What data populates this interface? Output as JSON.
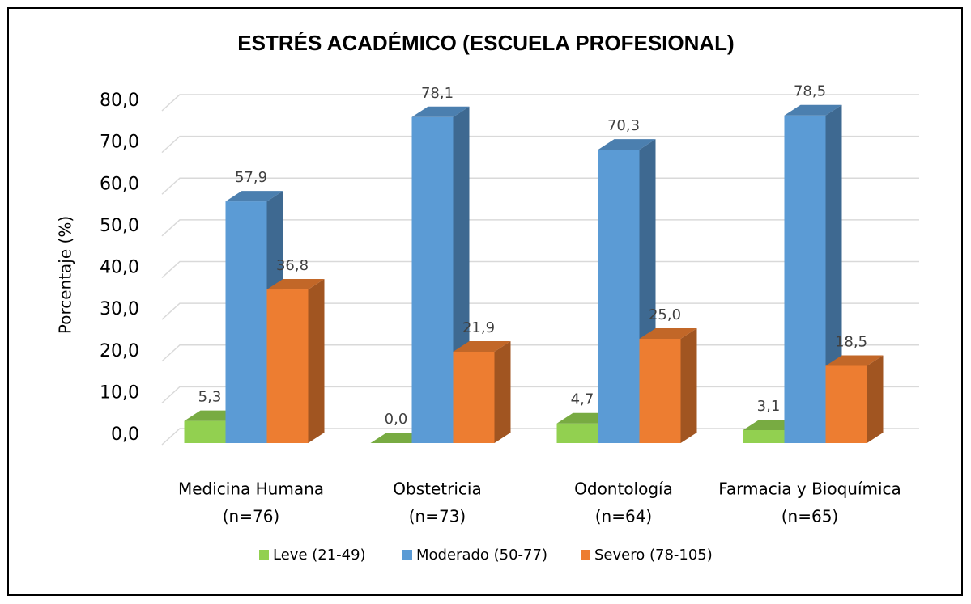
{
  "chart_data": {
    "type": "bar3d",
    "title": "ESTRÉS ACADÉMICO (ESCUELA PROFESIONAL)",
    "y_label": "Porcentaje (%)",
    "categories": [
      [
        "Medicina Humana",
        "(n=76)"
      ],
      [
        "Obstetricia",
        "(n=73)"
      ],
      [
        "Odontología",
        "(n=64)"
      ],
      [
        "Farmacia y Bioquímica",
        "(n=65)"
      ]
    ],
    "series": [
      {
        "name": "Leve (21-49)",
        "color": "#92d050",
        "values": [
          5.3,
          0.0,
          4.7,
          3.1
        ],
        "value_labels": [
          "5,3",
          "0,0",
          "4,7",
          "3,1"
        ]
      },
      {
        "name": "Moderado (50-77)",
        "color": "#5b9bd5",
        "values": [
          57.9,
          78.1,
          70.3,
          78.5
        ],
        "value_labels": [
          "57,9",
          "78,1",
          "70,3",
          "78,5"
        ]
      },
      {
        "name": "Severo (78-105)",
        "color": "#ed7d31",
        "values": [
          36.8,
          21.9,
          25.0,
          18.5
        ],
        "value_labels": [
          "36,8",
          "21,9",
          "25,0",
          "18,5"
        ]
      }
    ],
    "ylim": [
      0,
      80
    ],
    "yticks": [
      {
        "value": 0,
        "label": "0,0"
      },
      {
        "value": 10,
        "label": "10,0"
      },
      {
        "value": 20,
        "label": "20,0"
      },
      {
        "value": 30,
        "label": "30,0"
      },
      {
        "value": 40,
        "label": "40,0"
      },
      {
        "value": 50,
        "label": "50,0"
      },
      {
        "value": 60,
        "label": "60,0"
      },
      {
        "value": 70,
        "label": "70,0"
      },
      {
        "value": 80,
        "label": "80,0"
      }
    ],
    "grid": true,
    "legend": "bottom"
  }
}
